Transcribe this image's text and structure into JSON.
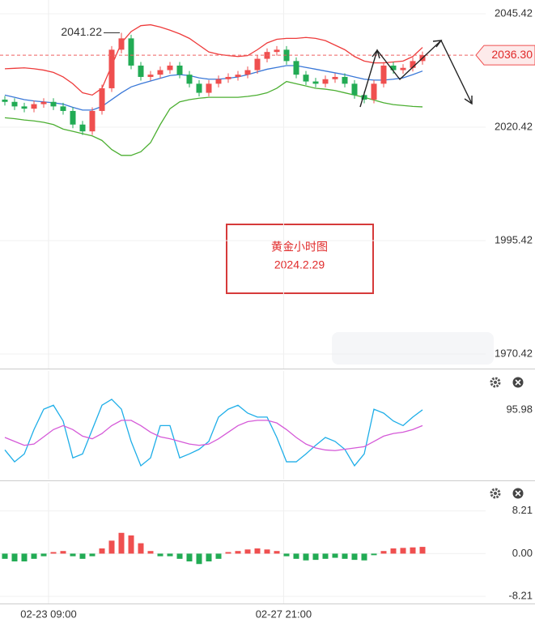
{
  "chart_data": [
    {
      "type": "candlestick",
      "up_color": "#ef4f4f",
      "down_color": "#22ab54",
      "open": [
        2026.5,
        2026,
        2025,
        2024.5,
        2025.5,
        2026,
        2025,
        2024,
        2021,
        2019.5,
        2024,
        2029,
        2037.5,
        2040,
        2034,
        2031.5,
        2032,
        2033,
        2034,
        2032,
        2030,
        2028,
        2030,
        2031,
        2031.5,
        2032,
        2033,
        2035.5,
        2037,
        2037.5,
        2035,
        2032,
        2030.5,
        2030,
        2031,
        2031.5,
        2030,
        2027.5,
        2026.5,
        2030,
        2034,
        2033,
        2033.5,
        2035
      ],
      "high": [
        2027.3,
        2026.8,
        2025.8,
        2026.3,
        2026.8,
        2026.8,
        2025.8,
        2024.8,
        2021.8,
        2024.8,
        2029.8,
        2038.3,
        2041.22,
        2040.8,
        2034.8,
        2032.8,
        2033.8,
        2034.8,
        2034.8,
        2032.8,
        2030.8,
        2030.8,
        2031.8,
        2032.3,
        2032.8,
        2033.8,
        2036.3,
        2037.8,
        2038.3,
        2038.3,
        2035.8,
        2032.8,
        2031.3,
        2031.8,
        2032.3,
        2032.3,
        2030.8,
        2028.3,
        2030.8,
        2034.8,
        2034.8,
        2034.3,
        2035.8,
        2037.1
      ],
      "low": [
        2025.2,
        2024.2,
        2023.7,
        2023.7,
        2024.7,
        2024.2,
        2023.2,
        2020.2,
        2018.7,
        2018.7,
        2023.2,
        2028.2,
        2036.7,
        2033.2,
        2030.7,
        2030.7,
        2031.2,
        2032.2,
        2031.2,
        2029.2,
        2027.2,
        2027.2,
        2029.2,
        2030.2,
        2030.7,
        2031.2,
        2032.2,
        2034.7,
        2036.2,
        2034.2,
        2031.2,
        2029.7,
        2029.2,
        2029.2,
        2030.2,
        2029.2,
        2026.7,
        2025.7,
        2025.7,
        2029.2,
        2032.2,
        2032.2,
        2032.7,
        2034.2
      ],
      "close": [
        2026,
        2025,
        2024.5,
        2025.5,
        2026,
        2025,
        2024,
        2021,
        2019.5,
        2024,
        2029,
        2037.5,
        2040,
        2034,
        2031.5,
        2032,
        2033,
        2034,
        2032,
        2030,
        2028,
        2030,
        2031,
        2031.5,
        2032,
        2033,
        2035.5,
        2037,
        2037.5,
        2035,
        2032,
        2030.5,
        2030,
        2031,
        2031.5,
        2030,
        2027.5,
        2026.5,
        2030,
        2034,
        2033,
        2033.5,
        2035,
        2036.3
      ],
      "series": [
        {
          "color": "#ee3b3b",
          "values": [
            2033.3,
            2033.4,
            2033.5,
            2033.3,
            2033,
            2032.5,
            2031.5,
            2030,
            2028,
            2027.5,
            2029,
            2034,
            2039,
            2041.5,
            2042.8,
            2043,
            2042.5,
            2041.8,
            2041,
            2040,
            2038.5,
            2037,
            2036.5,
            2036.2,
            2036,
            2036.2,
            2037.5,
            2039,
            2039.8,
            2040,
            2040,
            2040.2,
            2040,
            2039.5,
            2038.5,
            2037.5,
            2036,
            2035,
            2034.6,
            2034.6,
            2034.8,
            2035,
            2036,
            2038
          ]
        },
        {
          "color": "#3a78d8",
          "values": [
            2027.5,
            2027,
            2026.5,
            2026.2,
            2026,
            2025.8,
            2025.5,
            2024.8,
            2024.2,
            2024.2,
            2025,
            2026.5,
            2028,
            2029.3,
            2030,
            2030.6,
            2031.2,
            2031.8,
            2032,
            2031.8,
            2031.3,
            2031,
            2031,
            2031.2,
            2031.5,
            2032,
            2032.6,
            2033.2,
            2033.6,
            2034,
            2034,
            2033.6,
            2033.2,
            2032.8,
            2032.4,
            2032,
            2031.5,
            2031,
            2030.8,
            2030.8,
            2031,
            2031.3,
            2032,
            2032.8
          ]
        },
        {
          "color": "#4caf32",
          "values": [
            2022.5,
            2022.3,
            2022,
            2021.8,
            2021.5,
            2021,
            2020,
            2019.5,
            2019,
            2018.5,
            2017.5,
            2015.5,
            2014.2,
            2014.2,
            2015,
            2017,
            2021,
            2024.5,
            2026,
            2026.5,
            2026.8,
            2027,
            2027,
            2027,
            2027,
            2027.2,
            2027.5,
            2028,
            2029,
            2030.5,
            2030,
            2029.5,
            2029,
            2028.8,
            2028.5,
            2028,
            2027.5,
            2027,
            2026.4,
            2025.8,
            2025.4,
            2025.2,
            2025,
            2024.9
          ]
        }
      ],
      "ylim": [
        1967.2,
        2048.46
      ],
      "yticks": [
        2045.42,
        2020.42,
        1995.42,
        1970.42
      ],
      "last_price": {
        "value": 2036.3,
        "label": "2036.30"
      },
      "note": [
        "黄金小时图",
        "2024.2.29"
      ]
    },
    {
      "type": "line",
      "series": [
        {
          "color": "#1eaee8",
          "values": [
            35,
            17,
            29,
            66,
            97,
            103,
            79,
            23,
            29,
            66,
            103,
            112,
            97,
            48,
            11,
            23,
            72,
            72,
            23,
            29,
            36,
            48,
            85,
            97,
            103,
            91,
            85,
            85,
            54,
            17,
            17,
            29,
            42,
            54,
            48,
            36,
            11,
            29,
            97,
            91,
            79,
            72,
            85,
            95.98
          ]
        },
        {
          "color": "#d55ad8",
          "values": [
            54,
            48,
            42,
            44,
            55,
            66,
            72,
            66,
            56,
            52,
            60,
            72,
            80,
            80,
            72,
            62,
            55,
            52,
            48,
            44,
            42,
            44,
            52,
            62,
            72,
            78,
            80,
            80,
            76,
            66,
            54,
            44,
            38,
            35,
            34,
            36,
            38,
            40,
            48,
            56,
            60,
            62,
            66,
            72
          ]
        }
      ],
      "ylim": [
        -10,
        155
      ]
    },
    {
      "type": "bar",
      "up_color": "#ef4f4f",
      "down_color": "#22ab54",
      "values": [
        -1,
        -1.5,
        -1.5,
        -1,
        -0.5,
        0.3,
        0.5,
        -0.5,
        -1,
        -0.5,
        1,
        2.5,
        4,
        3.5,
        2,
        0.5,
        -0.5,
        -0.5,
        -1,
        -1.5,
        -2,
        -1.5,
        -1,
        0.3,
        0.5,
        0.8,
        1,
        0.8,
        0.5,
        -0.5,
        -1,
        -1.3,
        -1.2,
        -1,
        -0.8,
        -1,
        -1.2,
        -1.3,
        -0.3,
        0.5,
        1,
        1.1,
        1.2,
        1.3
      ],
      "ylim": [
        -9.6,
        13.63
      ],
      "yticks": [
        8.21,
        {
          "value": 0,
          "label": "0.00"
        },
        -8.21
      ],
      "xlim": [
        -0.5,
        49.5
      ],
      "xticks": [
        {
          "value": 4.5,
          "label": "02-23 09:00"
        },
        {
          "value": 28.7,
          "label": "02-27 21:00"
        }
      ]
    }
  ]
}
